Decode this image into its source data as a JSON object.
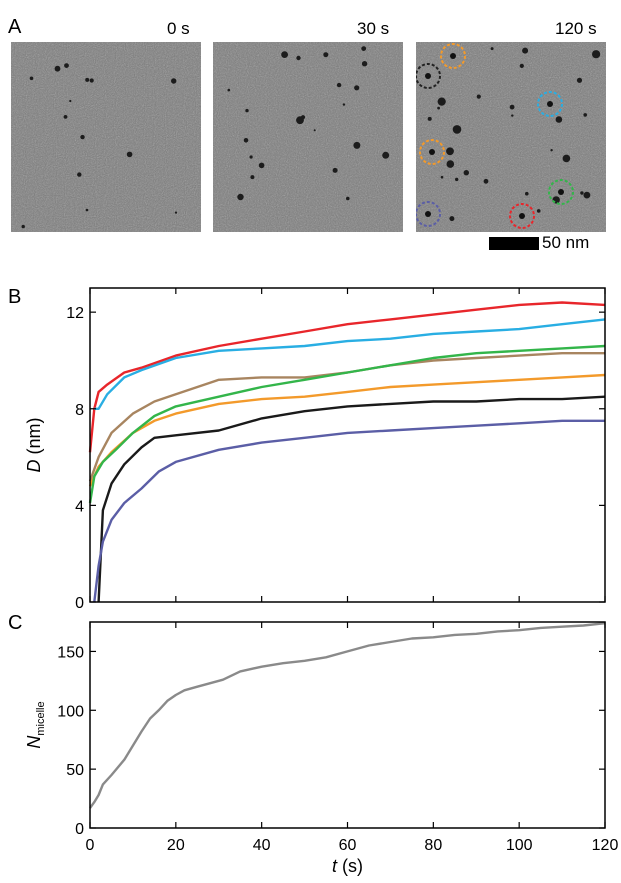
{
  "panels": {
    "a": {
      "letter": "A"
    },
    "b": {
      "letter": "B"
    },
    "c": {
      "letter": "C"
    }
  },
  "tem_images": [
    {
      "time_label": "0 s"
    },
    {
      "time_label": "30 s"
    },
    {
      "time_label": "120 s"
    }
  ],
  "scalebar": {
    "label": "50 nm"
  },
  "circle_colors": [
    "#222222",
    "#f39a2b",
    "#29aee3",
    "#f39a2b",
    "#33b54a",
    "#e8262b",
    "#5b5ea6"
  ],
  "chart_data": [
    {
      "type": "line",
      "panel": "B",
      "ylabel_italic": "D",
      "ylabel_unit": "(nm)",
      "xlim": [
        0,
        120
      ],
      "ylim": [
        0,
        13
      ],
      "yticks": [
        0,
        4,
        8,
        12
      ],
      "xticks": [
        0,
        20,
        40,
        60,
        80,
        100,
        120
      ],
      "show_x_ticklabels": false,
      "grid": false,
      "series": [
        {
          "color": "#e8262b",
          "points": [
            [
              0,
              6.2
            ],
            [
              1,
              8.0
            ],
            [
              2,
              8.7
            ],
            [
              4,
              9.0
            ],
            [
              8,
              9.5
            ],
            [
              12,
              9.7
            ],
            [
              20,
              10.2
            ],
            [
              30,
              10.6
            ],
            [
              40,
              10.9
            ],
            [
              50,
              11.2
            ],
            [
              60,
              11.5
            ],
            [
              70,
              11.7
            ],
            [
              80,
              11.9
            ],
            [
              90,
              12.1
            ],
            [
              100,
              12.3
            ],
            [
              110,
              12.4
            ],
            [
              120,
              12.3
            ]
          ]
        },
        {
          "color": "#29aee3",
          "points": [
            [
              1,
              8.0
            ],
            [
              2,
              8.0
            ],
            [
              4,
              8.6
            ],
            [
              8,
              9.3
            ],
            [
              12,
              9.6
            ],
            [
              20,
              10.1
            ],
            [
              30,
              10.4
            ],
            [
              40,
              10.5
            ],
            [
              50,
              10.6
            ],
            [
              60,
              10.8
            ],
            [
              70,
              10.9
            ],
            [
              80,
              11.1
            ],
            [
              90,
              11.2
            ],
            [
              100,
              11.3
            ],
            [
              110,
              11.5
            ],
            [
              120,
              11.7
            ]
          ]
        },
        {
          "color": "#a88560",
          "points": [
            [
              0,
              5.0
            ],
            [
              2,
              6.0
            ],
            [
              5,
              7.0
            ],
            [
              10,
              7.8
            ],
            [
              15,
              8.3
            ],
            [
              20,
              8.6
            ],
            [
              30,
              9.2
            ],
            [
              40,
              9.3
            ],
            [
              50,
              9.3
            ],
            [
              60,
              9.5
            ],
            [
              70,
              9.8
            ],
            [
              80,
              10.0
            ],
            [
              90,
              10.1
            ],
            [
              100,
              10.2
            ],
            [
              110,
              10.3
            ],
            [
              120,
              10.3
            ]
          ]
        },
        {
          "color": "#f39a2b",
          "points": [
            [
              0,
              4.8
            ],
            [
              2,
              5.6
            ],
            [
              5,
              6.2
            ],
            [
              10,
              7.0
            ],
            [
              15,
              7.5
            ],
            [
              20,
              7.8
            ],
            [
              30,
              8.2
            ],
            [
              40,
              8.4
            ],
            [
              50,
              8.5
            ],
            [
              60,
              8.7
            ],
            [
              70,
              8.9
            ],
            [
              80,
              9.0
            ],
            [
              90,
              9.1
            ],
            [
              100,
              9.2
            ],
            [
              110,
              9.3
            ],
            [
              120,
              9.4
            ]
          ]
        },
        {
          "color": "#33b54a",
          "points": [
            [
              0,
              4.1
            ],
            [
              1,
              5.2
            ],
            [
              3,
              5.8
            ],
            [
              6,
              6.3
            ],
            [
              10,
              7.0
            ],
            [
              15,
              7.7
            ],
            [
              20,
              8.1
            ],
            [
              30,
              8.5
            ],
            [
              40,
              8.9
            ],
            [
              50,
              9.2
            ],
            [
              60,
              9.5
            ],
            [
              70,
              9.8
            ],
            [
              80,
              10.1
            ],
            [
              90,
              10.3
            ],
            [
              100,
              10.4
            ],
            [
              110,
              10.5
            ],
            [
              120,
              10.6
            ]
          ]
        },
        {
          "color": "#1a1a1a",
          "points": [
            [
              2,
              0
            ],
            [
              3,
              3.8
            ],
            [
              5,
              4.9
            ],
            [
              8,
              5.7
            ],
            [
              12,
              6.4
            ],
            [
              15,
              6.8
            ],
            [
              20,
              6.9
            ],
            [
              30,
              7.1
            ],
            [
              40,
              7.6
            ],
            [
              50,
              7.9
            ],
            [
              60,
              8.1
            ],
            [
              70,
              8.2
            ],
            [
              80,
              8.3
            ],
            [
              90,
              8.3
            ],
            [
              100,
              8.4
            ],
            [
              110,
              8.4
            ],
            [
              120,
              8.5
            ]
          ]
        },
        {
          "color": "#5b5ea6",
          "points": [
            [
              1,
              0
            ],
            [
              2,
              1.5
            ],
            [
              3,
              2.5
            ],
            [
              5,
              3.4
            ],
            [
              8,
              4.1
            ],
            [
              12,
              4.7
            ],
            [
              16,
              5.4
            ],
            [
              20,
              5.8
            ],
            [
              30,
              6.3
            ],
            [
              40,
              6.6
            ],
            [
              50,
              6.8
            ],
            [
              60,
              7.0
            ],
            [
              70,
              7.1
            ],
            [
              80,
              7.2
            ],
            [
              90,
              7.3
            ],
            [
              100,
              7.4
            ],
            [
              110,
              7.5
            ],
            [
              120,
              7.5
            ]
          ]
        }
      ]
    },
    {
      "type": "line",
      "panel": "C",
      "ylabel_main": "N",
      "ylabel_sub": "micelle",
      "xlabel_italic": "t",
      "xlabel_unit": "(s)",
      "xlim": [
        0,
        120
      ],
      "ylim": [
        0,
        175
      ],
      "yticks": [
        0,
        50,
        100,
        150
      ],
      "xticks": [
        0,
        20,
        40,
        60,
        80,
        100,
        120
      ],
      "grid": false,
      "series": [
        {
          "color": "#8a8a8a",
          "points": [
            [
              0,
              17
            ],
            [
              1,
              22
            ],
            [
              2,
              28
            ],
            [
              3,
              37
            ],
            [
              5,
              45
            ],
            [
              8,
              58
            ],
            [
              10,
              70
            ],
            [
              12,
              82
            ],
            [
              14,
              93
            ],
            [
              16,
              100
            ],
            [
              18,
              108
            ],
            [
              20,
              113
            ],
            [
              22,
              117
            ],
            [
              25,
              120
            ],
            [
              28,
              123
            ],
            [
              31,
              126
            ],
            [
              35,
              133
            ],
            [
              40,
              137
            ],
            [
              45,
              140
            ],
            [
              50,
              142
            ],
            [
              55,
              145
            ],
            [
              60,
              150
            ],
            [
              65,
              155
            ],
            [
              70,
              158
            ],
            [
              75,
              161
            ],
            [
              80,
              162
            ],
            [
              85,
              164
            ],
            [
              90,
              165
            ],
            [
              95,
              167
            ],
            [
              100,
              168
            ],
            [
              105,
              170
            ],
            [
              110,
              171
            ],
            [
              115,
              172
            ],
            [
              120,
              174
            ]
          ]
        }
      ]
    }
  ]
}
